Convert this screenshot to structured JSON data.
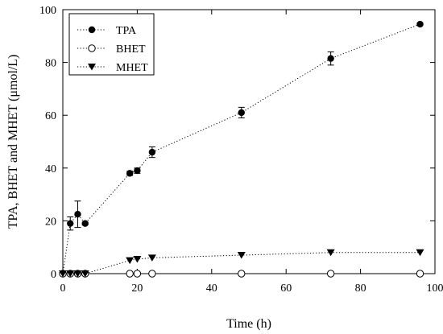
{
  "chart_data": {
    "type": "scatter",
    "title": "",
    "xlabel": "Time (h)",
    "ylabel": "TPA, BHET and MHET (μmol/L)",
    "xlim": [
      0,
      100
    ],
    "ylim": [
      0,
      100
    ],
    "x_ticks": [
      0,
      20,
      40,
      60,
      80,
      100
    ],
    "y_ticks": [
      0,
      20,
      40,
      60,
      80,
      100
    ],
    "grid": false,
    "legend_position": "top-left",
    "series": [
      {
        "name": "TPA",
        "marker": "filled-circle",
        "line_style": "dotted",
        "x": [
          0,
          2,
          4,
          6,
          18,
          20,
          24,
          48,
          72,
          96
        ],
        "y": [
          0,
          19,
          22.5,
          19,
          38,
          39,
          46,
          61,
          81.5,
          94.5
        ],
        "err": [
          0,
          2.5,
          5,
          0.5,
          0.8,
          1,
          2,
          2,
          2.5,
          0.5
        ]
      },
      {
        "name": "BHET",
        "marker": "open-circle",
        "line_style": "dotted",
        "x": [
          0,
          2,
          4,
          6,
          18,
          20,
          24,
          48,
          72,
          96
        ],
        "y": [
          0,
          0,
          0,
          0,
          0,
          0,
          0,
          0,
          0,
          0
        ],
        "err": [
          0,
          0,
          0,
          0,
          0,
          0,
          0,
          0,
          0,
          0
        ]
      },
      {
        "name": "MHET",
        "marker": "filled-triangle-down",
        "line_style": "dotted",
        "x": [
          0,
          2,
          4,
          6,
          18,
          20,
          24,
          48,
          72,
          96
        ],
        "y": [
          0,
          0,
          0,
          0,
          5,
          5.5,
          6,
          7,
          8,
          8
        ],
        "err": [
          0,
          0,
          0,
          0,
          0,
          0,
          0,
          0,
          0,
          0
        ]
      }
    ],
    "colors": {
      "axis": "#000000",
      "marker": "#000000",
      "background": "#ffffff"
    }
  }
}
